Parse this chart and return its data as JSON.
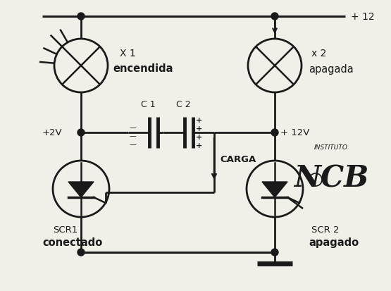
{
  "bg_color": "#f0efe8",
  "line_color": "#1a1a1a",
  "text_color": "#1a1a1a",
  "labels": {
    "x1": "X 1",
    "encendida": "encendida",
    "x2": "x 2",
    "apagada_lamp": "apagada",
    "plus12": "+ 12",
    "plus2v": "+2V",
    "plus12v": "+ 12V",
    "c1": "C 1",
    "c2": "C 2",
    "carga": "CARGA",
    "scr1": "SCR1",
    "conectado": "conectado",
    "scr2": "SCR 2",
    "apagado_scr": "apagado",
    "instituto": "INSTITUTO",
    "ncb": "NCB"
  }
}
